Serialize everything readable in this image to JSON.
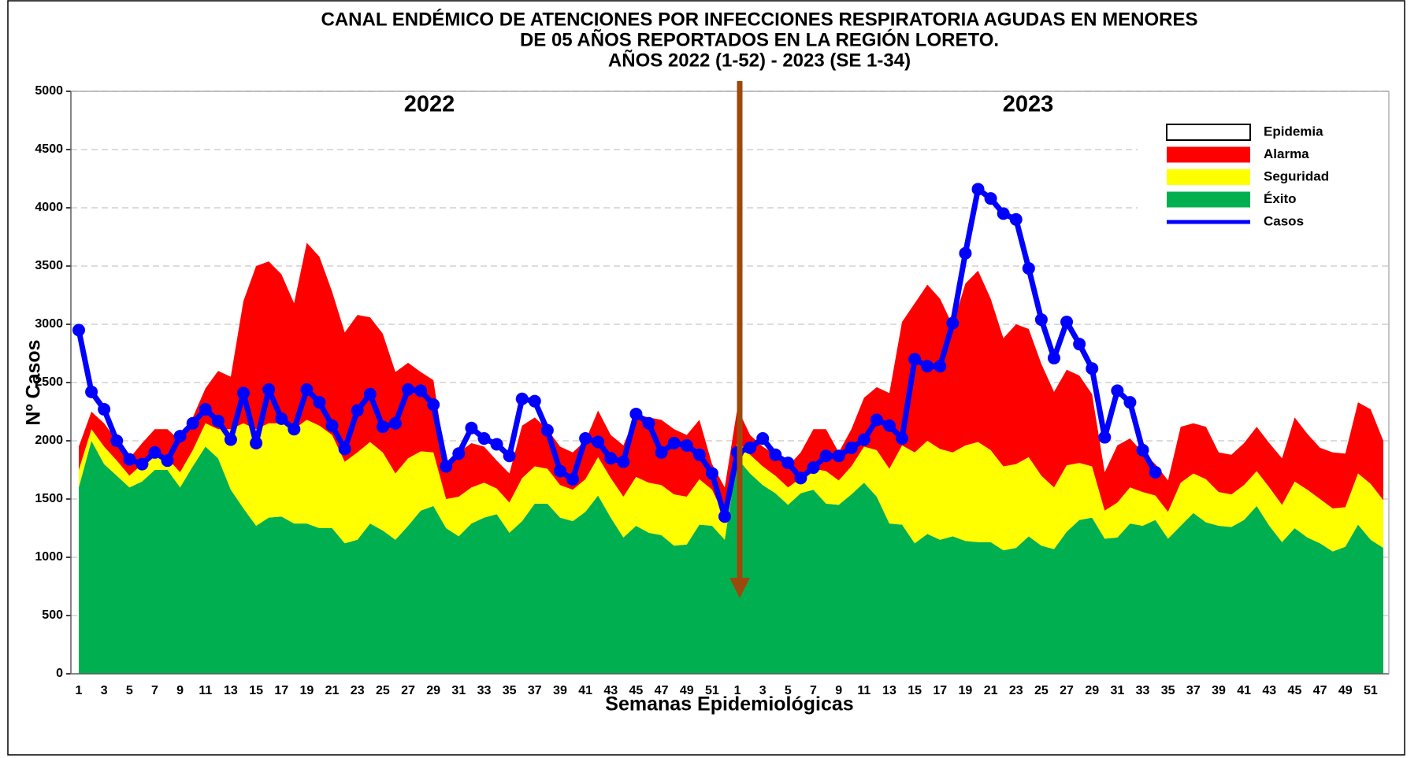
{
  "chart_data": {
    "type": "area",
    "title": [
      "CANAL ENDÉMICO DE ATENCIONES POR INFECCIONES RESPIRATORIA AGUDAS EN MENORES",
      "DE 05 AÑOS REPORTADOS EN LA REGIÓN LORETO.",
      "AÑOS 2022 (1-52) - 2023 (SE 1-34)"
    ],
    "x_label": "Semanas Epidemiológicas",
    "y_label": "Nº Casos",
    "annotations": [
      "2022",
      "2023"
    ],
    "categories": [
      "1",
      null,
      "3",
      null,
      "5",
      null,
      "7",
      null,
      "9",
      null,
      "11",
      null,
      "13",
      null,
      "15",
      null,
      "17",
      null,
      "19",
      null,
      "21",
      null,
      "23",
      null,
      "25",
      null,
      "27",
      null,
      "29",
      null,
      "31",
      null,
      "33",
      null,
      "35",
      null,
      "37",
      null,
      "39",
      null,
      "41",
      null,
      "43",
      null,
      "45",
      null,
      "47",
      null,
      "49",
      null,
      "51",
      null,
      "1",
      null,
      "3",
      null,
      "5",
      null,
      "7",
      null,
      "9",
      null,
      "11",
      null,
      "13",
      null,
      "15",
      null,
      "17",
      null,
      "19",
      null,
      "21",
      null,
      "23",
      null,
      "25",
      null,
      "27",
      null,
      "29",
      null,
      "31",
      null,
      "33",
      null,
      "35",
      null,
      "37",
      null,
      "39",
      null,
      "41",
      null,
      "43",
      null,
      "45",
      null,
      "47",
      null,
      "49",
      null,
      "51",
      null
    ],
    "ylim": [
      0,
      5000
    ],
    "yticks": [
      0,
      500,
      1000,
      1500,
      2000,
      2500,
      3000,
      3500,
      4000,
      4500,
      5000
    ],
    "grid": true,
    "legend": "upper right",
    "series": [
      {
        "name": "Éxito",
        "color": "#00b050",
        "values": [
          1600,
          2000,
          1800,
          1700,
          1600,
          1650,
          1750,
          1750,
          1600,
          1780,
          1950,
          1850,
          1580,
          1420,
          1270,
          1340,
          1350,
          1290,
          1290,
          1250,
          1250,
          1120,
          1150,
          1290,
          1230,
          1150,
          1270,
          1400,
          1440,
          1250,
          1180,
          1290,
          1340,
          1370,
          1210,
          1310,
          1460,
          1460,
          1340,
          1310,
          1390,
          1530,
          1340,
          1170,
          1270,
          1210,
          1190,
          1100,
          1110,
          1280,
          1270,
          1150,
          1850,
          1720,
          1620,
          1550,
          1450,
          1550,
          1580,
          1460,
          1450,
          1540,
          1640,
          1520,
          1290,
          1280,
          1120,
          1200,
          1150,
          1180,
          1140,
          1130,
          1130,
          1060,
          1080,
          1180,
          1100,
          1070,
          1220,
          1320,
          1340,
          1160,
          1170,
          1290,
          1270,
          1320,
          1160,
          1270,
          1380,
          1300,
          1270,
          1260,
          1320,
          1440,
          1270,
          1130,
          1250,
          1170,
          1120,
          1050,
          1090,
          1280,
          1150,
          1080
        ]
      },
      {
        "name": "Seguridad",
        "color": "#ffff00",
        "values": [
          150,
          100,
          150,
          130,
          100,
          150,
          130,
          100,
          130,
          140,
          200,
          250,
          520,
          730,
          830,
          810,
          800,
          810,
          890,
          880,
          800,
          700,
          750,
          700,
          670,
          570,
          580,
          510,
          460,
          250,
          340,
          310,
          300,
          220,
          260,
          370,
          320,
          300,
          280,
          270,
          280,
          330,
          340,
          350,
          420,
          430,
          430,
          440,
          410,
          390,
          310,
          200,
          150,
          160,
          160,
          150,
          150,
          130,
          180,
          280,
          210,
          240,
          310,
          400,
          470,
          680,
          780,
          800,
          780,
          720,
          820,
          860,
          790,
          720,
          720,
          680,
          600,
          530,
          570,
          490,
          440,
          240,
          300,
          310,
          290,
          210,
          230,
          370,
          340,
          370,
          290,
          280,
          300,
          300,
          330,
          320,
          400,
          410,
          380,
          370,
          340,
          440,
          480,
          410
        ]
      },
      {
        "name": "Alarma",
        "color": "#ff0000",
        "values": [
          200,
          150,
          200,
          170,
          150,
          180,
          220,
          250,
          270,
          280,
          300,
          500,
          450,
          1050,
          1400,
          1390,
          1280,
          1080,
          1520,
          1450,
          1230,
          1110,
          1180,
          1070,
          1020,
          870,
          820,
          680,
          620,
          300,
          380,
          380,
          310,
          240,
          250,
          450,
          420,
          340,
          330,
          320,
          330,
          400,
          370,
          440,
          540,
          560,
          560,
          560,
          530,
          510,
          220,
          250,
          280,
          170,
          170,
          180,
          180,
          220,
          340,
          360,
          240,
          320,
          420,
          540,
          650,
          1060,
          1280,
          1340,
          1290,
          1090,
          1390,
          1470,
          1300,
          1100,
          1200,
          1100,
          960,
          820,
          820,
          750,
          620,
          330,
          490,
          420,
          340,
          270,
          270,
          480,
          430,
          450,
          340,
          340,
          360,
          380,
          380,
          400,
          550,
          480,
          440,
          480,
          460,
          610,
          640,
          510
        ]
      },
      {
        "name": "Epidemia",
        "color": "#ffffff"
      },
      {
        "name": "Casos",
        "type": "line",
        "color": "#0000ff",
        "values": [
          2950,
          2420,
          2270,
          2000,
          1840,
          1800,
          1900,
          1830,
          2040,
          2150,
          2270,
          2170,
          2010,
          2410,
          1980,
          2440,
          2190,
          2100,
          2440,
          2330,
          2130,
          1930,
          2260,
          2400,
          2120,
          2150,
          2440,
          2430,
          2310,
          1780,
          1890,
          2110,
          2020,
          1970,
          1870,
          2360,
          2340,
          2090,
          1740,
          1670,
          2020,
          1990,
          1850,
          1820,
          2230,
          2150,
          1900,
          1980,
          1960,
          1880,
          1720,
          1350,
          1900,
          1940,
          2020,
          1880,
          1810,
          1680,
          1770,
          1870,
          1870,
          1940,
          2010,
          2180,
          2130,
          2020,
          2700,
          2640,
          2640,
          3010,
          3610,
          4160,
          4080,
          3950,
          3900,
          3480,
          3040,
          2710,
          3020,
          2830,
          2620,
          2030,
          2430,
          2330,
          1920,
          1730,
          null,
          null,
          null,
          null,
          null,
          null,
          null,
          null,
          null,
          null,
          null,
          null,
          null,
          null,
          null,
          null,
          null,
          null
        ]
      }
    ]
  }
}
